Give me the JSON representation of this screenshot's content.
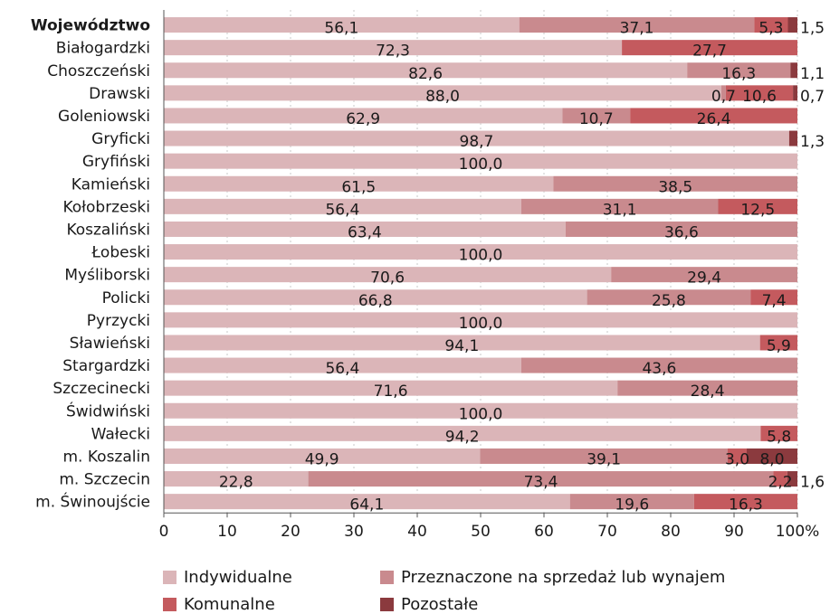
{
  "chart_data": {
    "type": "bar",
    "orientation": "horizontal",
    "stacked": "percent",
    "categories": [
      "Województwo",
      "Białogardzki",
      "Choszczeński",
      "Drawski",
      "Goleniowski",
      "Gryficki",
      "Gryfiński",
      "Kamieński",
      "Kołobrzeski",
      "Koszaliński",
      "Łobeski",
      "Myśliborski",
      "Policki",
      "Pyrzycki",
      "Sławieński",
      "Stargardzki",
      "Szczecinecki",
      "Świdwiński",
      "Wałecki",
      "m. Koszalin",
      "m. Szczecin",
      "m. Świnoujście"
    ],
    "bold_category": "Województwo",
    "series": [
      {
        "name": "Indywidualne",
        "color": "#dbb5b8",
        "values": [
          56.1,
          72.3,
          82.6,
          88.0,
          62.9,
          98.7,
          100.0,
          61.5,
          56.4,
          63.4,
          100.0,
          70.6,
          66.8,
          100.0,
          94.1,
          56.4,
          71.6,
          100.0,
          94.2,
          49.9,
          22.8,
          64.1
        ]
      },
      {
        "name": "Przeznaczone na sprzedaż lub wynajem",
        "color": "#c98a8e",
        "values": [
          37.1,
          null,
          16.3,
          0.7,
          10.7,
          null,
          null,
          38.5,
          31.1,
          36.6,
          null,
          29.4,
          25.8,
          null,
          null,
          43.6,
          28.4,
          null,
          null,
          39.1,
          73.4,
          19.6
        ]
      },
      {
        "name": "Komunalne",
        "color": "#c45a5e",
        "values": [
          5.3,
          27.7,
          null,
          10.6,
          26.4,
          null,
          null,
          null,
          12.5,
          null,
          null,
          null,
          7.4,
          null,
          5.9,
          null,
          null,
          null,
          5.8,
          3.0,
          2.2,
          16.3
        ]
      },
      {
        "name": "Pozostałe",
        "color": "#8b3a3e",
        "values": [
          1.5,
          null,
          1.1,
          0.7,
          null,
          1.3,
          null,
          null,
          null,
          null,
          null,
          null,
          null,
          null,
          null,
          null,
          null,
          null,
          null,
          8.0,
          1.6,
          null
        ]
      }
    ],
    "labels": [
      [
        "56,1",
        "37,1",
        "5,3",
        "1,5"
      ],
      [
        "72,3",
        "",
        "27,7",
        ""
      ],
      [
        "82,6",
        "16,3",
        "",
        "1,1"
      ],
      [
        "88,0",
        "0,7",
        "10,6",
        "0,7"
      ],
      [
        "62,9",
        "10,7",
        "26,4",
        ""
      ],
      [
        "98,7",
        "",
        "",
        "1,3"
      ],
      [
        "100,0",
        "",
        "",
        ""
      ],
      [
        "61,5",
        "38,5",
        "",
        ""
      ],
      [
        "56,4",
        "31,1",
        "12,5",
        ""
      ],
      [
        "63,4",
        "36,6",
        "",
        ""
      ],
      [
        "100,0",
        "",
        "",
        ""
      ],
      [
        "70,6",
        "29,4",
        "",
        ""
      ],
      [
        "66,8",
        "25,8",
        "7,4",
        ""
      ],
      [
        "100,0",
        "",
        "",
        ""
      ],
      [
        "94,1",
        "",
        "5,9",
        ""
      ],
      [
        "56,4",
        "43,6",
        "",
        ""
      ],
      [
        "71,6",
        "28,4",
        "",
        ""
      ],
      [
        "100,0",
        "",
        "",
        ""
      ],
      [
        "94,2",
        "",
        "5,8",
        ""
      ],
      [
        "49,9",
        "39,1",
        "3,0",
        "8,0"
      ],
      [
        "22,8",
        "73,4",
        "2,2",
        "1,6"
      ],
      [
        "64,1",
        "19,6",
        "16,3",
        ""
      ]
    ],
    "xticks": [
      "0",
      "10",
      "20",
      "30",
      "40",
      "50",
      "60",
      "70",
      "80",
      "90",
      "100%"
    ],
    "xlim": [
      0,
      100
    ],
    "grid": true,
    "legend_position": "bottom"
  }
}
